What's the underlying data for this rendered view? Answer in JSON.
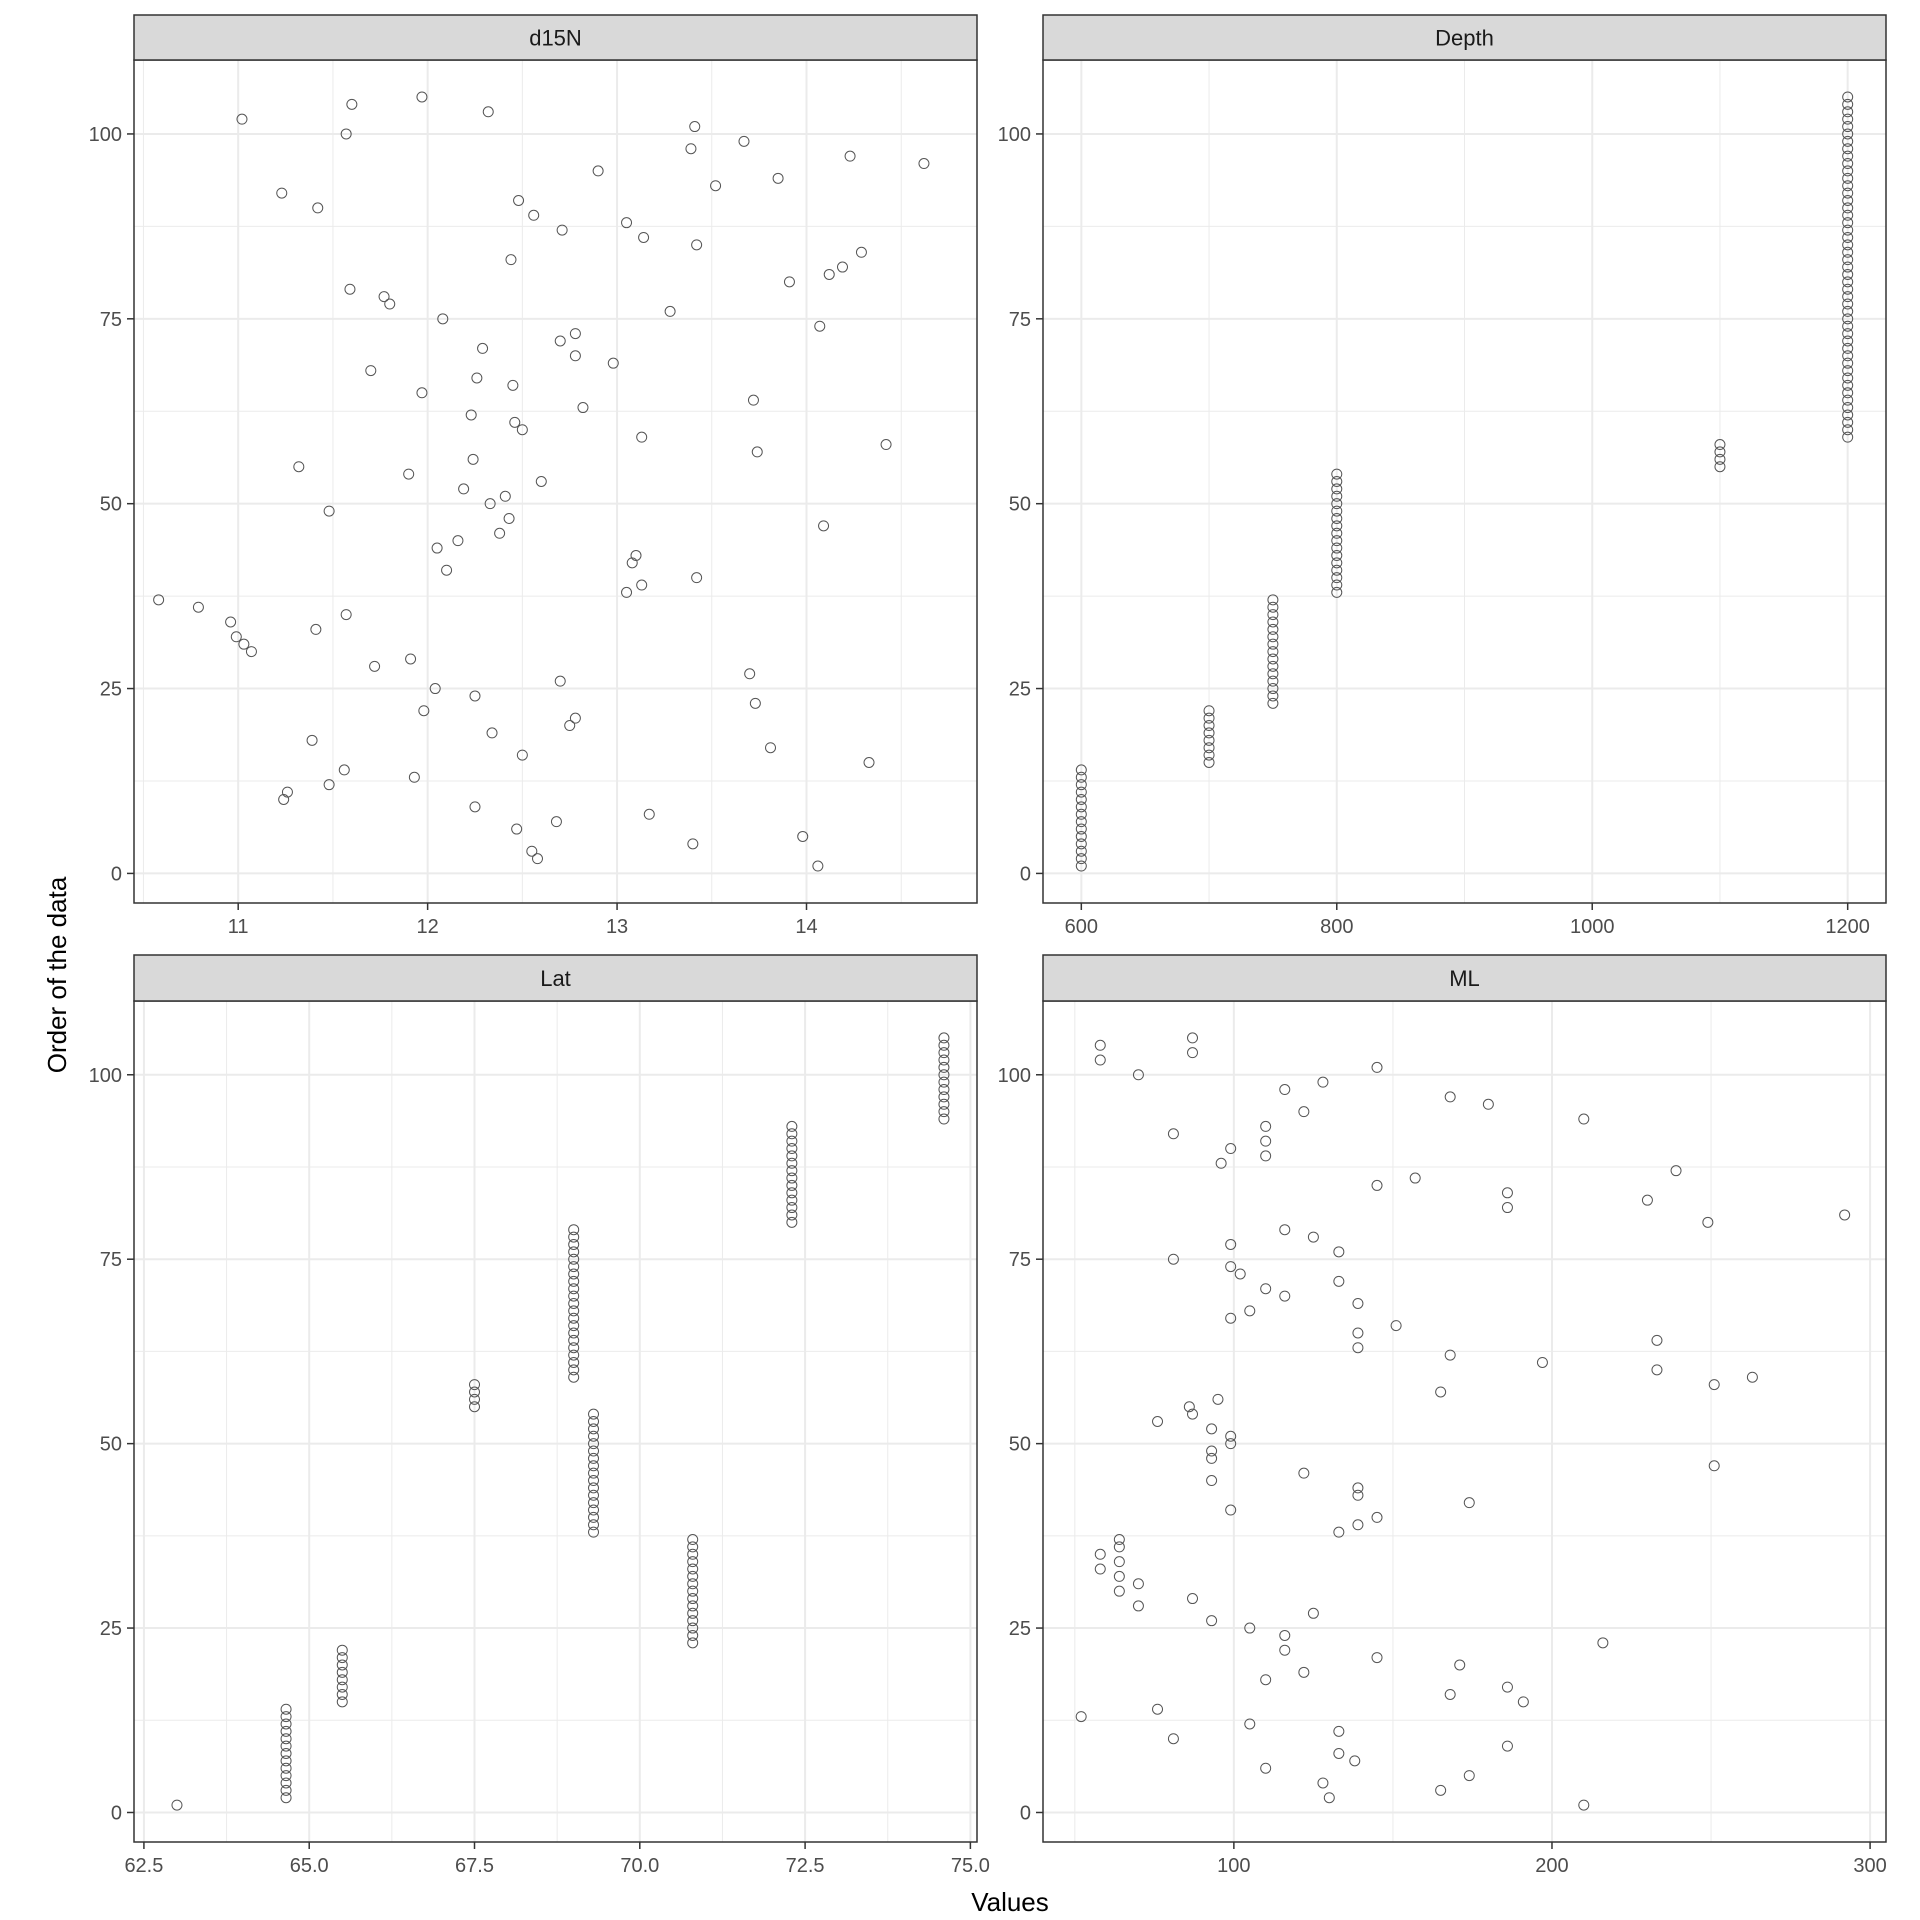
{
  "chart_data": {
    "type": "scatter",
    "xlabel": "Values",
    "ylabel": "Order of the data",
    "colors": {
      "strip_fill": "#d9d9d9",
      "grid": "#ebebeb",
      "point_stroke": "#555555",
      "panel_border": "#333333",
      "text": "#4d4d4d"
    },
    "panels": [
      {
        "name": "d15N",
        "xlim": [
          10.45,
          14.9
        ],
        "xticks": [
          11,
          12,
          13,
          14
        ],
        "xtick_labels": [
          "11",
          "12",
          "13",
          "14"
        ],
        "xminor": [
          10.5,
          11.5,
          12.5,
          13.5,
          14.5
        ],
        "ylim": [
          -4,
          110
        ],
        "yticks": [
          0,
          25,
          50,
          75,
          100
        ],
        "ytick_labels": [
          "0",
          "25",
          "50",
          "75",
          "100"
        ],
        "points": [
          [
            14.06,
            1
          ],
          [
            12.58,
            2
          ],
          [
            12.55,
            3
          ],
          [
            13.4,
            4
          ],
          [
            13.98,
            5
          ],
          [
            12.47,
            6
          ],
          [
            12.68,
            7
          ],
          [
            13.17,
            8
          ],
          [
            12.25,
            9
          ],
          [
            11.24,
            10
          ],
          [
            11.26,
            11
          ],
          [
            11.48,
            12
          ],
          [
            11.93,
            13
          ],
          [
            11.56,
            14
          ],
          [
            14.33,
            15
          ],
          [
            12.5,
            16
          ],
          [
            13.81,
            17
          ],
          [
            11.39,
            18
          ],
          [
            12.34,
            19
          ],
          [
            12.75,
            20
          ],
          [
            12.78,
            21
          ],
          [
            11.98,
            22
          ],
          [
            13.73,
            23
          ],
          [
            12.25,
            24
          ],
          [
            12.04,
            25
          ],
          [
            12.7,
            26
          ],
          [
            13.7,
            27
          ],
          [
            11.72,
            28
          ],
          [
            11.91,
            29
          ],
          [
            11.07,
            30
          ],
          [
            11.03,
            31
          ],
          [
            10.99,
            32
          ],
          [
            11.41,
            33
          ],
          [
            10.96,
            34
          ],
          [
            11.57,
            35
          ],
          [
            10.79,
            36
          ],
          [
            10.58,
            37
          ],
          [
            13.05,
            38
          ],
          [
            13.13,
            39
          ],
          [
            13.42,
            40
          ],
          [
            12.1,
            41
          ],
          [
            13.08,
            42
          ],
          [
            13.1,
            43
          ],
          [
            12.05,
            44
          ],
          [
            12.16,
            45
          ],
          [
            12.38,
            46
          ],
          [
            14.09,
            47
          ],
          [
            12.43,
            48
          ],
          [
            11.48,
            49
          ],
          [
            12.33,
            50
          ],
          [
            12.41,
            51
          ],
          [
            12.19,
            52
          ],
          [
            12.6,
            53
          ],
          [
            11.9,
            54
          ],
          [
            11.32,
            55
          ],
          [
            12.24,
            56
          ],
          [
            13.74,
            57
          ],
          [
            14.42,
            58
          ],
          [
            13.13,
            59
          ],
          [
            12.5,
            60
          ],
          [
            12.46,
            61
          ],
          [
            12.23,
            62
          ],
          [
            12.82,
            63
          ],
          [
            13.72,
            64
          ],
          [
            11.97,
            65
          ],
          [
            12.45,
            66
          ],
          [
            12.26,
            67
          ],
          [
            11.7,
            68
          ],
          [
            12.98,
            69
          ],
          [
            12.78,
            70
          ],
          [
            12.29,
            71
          ],
          [
            12.7,
            72
          ],
          [
            12.78,
            73
          ],
          [
            14.07,
            74
          ],
          [
            12.08,
            75
          ],
          [
            13.28,
            76
          ],
          [
            11.8,
            77
          ],
          [
            11.77,
            78
          ],
          [
            11.59,
            79
          ],
          [
            13.91,
            80
          ],
          [
            14.12,
            81
          ],
          [
            14.19,
            82
          ],
          [
            12.44,
            83
          ],
          [
            14.29,
            84
          ],
          [
            13.42,
            85
          ],
          [
            13.14,
            86
          ],
          [
            12.71,
            87
          ],
          [
            13.05,
            88
          ],
          [
            12.56,
            89
          ],
          [
            11.42,
            90
          ],
          [
            12.48,
            91
          ],
          [
            11.23,
            92
          ],
          [
            13.52,
            93
          ],
          [
            13.85,
            94
          ],
          [
            12.9,
            95
          ],
          [
            14.62,
            96
          ],
          [
            14.23,
            97
          ],
          [
            13.39,
            98
          ],
          [
            13.67,
            99
          ],
          [
            11.57,
            100
          ],
          [
            13.41,
            101
          ],
          [
            11.02,
            102
          ],
          [
            12.32,
            103
          ],
          [
            11.6,
            104
          ],
          [
            11.97,
            105
          ]
        ]
      },
      {
        "name": "Depth",
        "xlim": [
          570,
          1230
        ],
        "xticks": [
          600,
          800,
          1000,
          1200
        ],
        "xtick_labels": [
          "600",
          "800",
          "1000",
          "1200"
        ],
        "xminor": [
          700,
          900,
          1100
        ],
        "ylim": [
          -4,
          110
        ],
        "yticks": [
          0,
          25,
          50,
          75,
          100
        ],
        "ytick_labels": [
          "0",
          "25",
          "50",
          "75",
          "100"
        ],
        "groups": [
          {
            "x": 600,
            "from": 1,
            "to": 14
          },
          {
            "x": 700,
            "from": 15,
            "to": 22
          },
          {
            "x": 750,
            "from": 23,
            "to": 37
          },
          {
            "x": 800,
            "from": 38,
            "to": 54
          },
          {
            "x": 1100,
            "from": 55,
            "to": 58
          },
          {
            "x": 1200,
            "from": 59,
            "to": 105
          }
        ]
      },
      {
        "name": "Lat",
        "xlim": [
          62.35,
          75.1
        ],
        "xticks": [
          62.5,
          65.0,
          67.5,
          70.0,
          72.5,
          75.0
        ],
        "xtick_labels": [
          "62.5",
          "65.0",
          "67.5",
          "70.0",
          "72.5",
          "75.0"
        ],
        "xminor": [
          63.75,
          66.25,
          68.75,
          71.25,
          73.75
        ],
        "ylim": [
          -4,
          110
        ],
        "yticks": [
          0,
          25,
          50,
          75,
          100
        ],
        "ytick_labels": [
          "0",
          "25",
          "50",
          "75",
          "100"
        ],
        "groups": [
          {
            "x": 63.0,
            "from": 1,
            "to": 1
          },
          {
            "x": 64.65,
            "from": 2,
            "to": 14
          },
          {
            "x": 65.5,
            "from": 15,
            "to": 22
          },
          {
            "x": 70.8,
            "from": 23,
            "to": 37
          },
          {
            "x": 69.3,
            "from": 38,
            "to": 54
          },
          {
            "x": 67.5,
            "from": 55,
            "to": 58
          },
          {
            "x": 69.0,
            "from": 59,
            "to": 79
          },
          {
            "x": 72.3,
            "from": 80,
            "to": 93
          },
          {
            "x": 74.6,
            "from": 94,
            "to": 105
          }
        ]
      },
      {
        "name": "ML",
        "xlim": [
          40,
          305
        ],
        "xticks": [
          100,
          200,
          300
        ],
        "xtick_labels": [
          "100",
          "200",
          "300"
        ],
        "xminor": [
          50,
          150,
          250
        ],
        "ylim": [
          -4,
          110
        ],
        "yticks": [
          0,
          25,
          50,
          75,
          100
        ],
        "ytick_labels": [
          "0",
          "25",
          "50",
          "75",
          "100"
        ],
        "points": [
          [
            210,
            1
          ],
          [
            130,
            2
          ],
          [
            165,
            3
          ],
          [
            128,
            4
          ],
          [
            174,
            5
          ],
          [
            110,
            6
          ],
          [
            138,
            7
          ],
          [
            133,
            8
          ],
          [
            186,
            9
          ],
          [
            81,
            10
          ],
          [
            133,
            11
          ],
          [
            105,
            12
          ],
          [
            52,
            13
          ],
          [
            76,
            14
          ],
          [
            191,
            15
          ],
          [
            168,
            16
          ],
          [
            186,
            17
          ],
          [
            110,
            18
          ],
          [
            122,
            19
          ],
          [
            171,
            20
          ],
          [
            145,
            21
          ],
          [
            116,
            22
          ],
          [
            216,
            23
          ],
          [
            116,
            24
          ],
          [
            105,
            25
          ],
          [
            93,
            26
          ],
          [
            125,
            27
          ],
          [
            70,
            28
          ],
          [
            87,
            29
          ],
          [
            64,
            30
          ],
          [
            70,
            31
          ],
          [
            64,
            32
          ],
          [
            58,
            33
          ],
          [
            64,
            34
          ],
          [
            58,
            35
          ],
          [
            64,
            36
          ],
          [
            64,
            37
          ],
          [
            133,
            38
          ],
          [
            139,
            39
          ],
          [
            145,
            40
          ],
          [
            99,
            41
          ],
          [
            174,
            42
          ],
          [
            139,
            43
          ],
          [
            139,
            44
          ],
          [
            93,
            45
          ],
          [
            122,
            46
          ],
          [
            251,
            47
          ],
          [
            93,
            48
          ],
          [
            93,
            49
          ],
          [
            99,
            50
          ],
          [
            99,
            51
          ],
          [
            93,
            52
          ],
          [
            76,
            53
          ],
          [
            87,
            54
          ],
          [
            86,
            55
          ],
          [
            95,
            56
          ],
          [
            165,
            57
          ],
          [
            251,
            58
          ],
          [
            263,
            59
          ],
          [
            233,
            60
          ],
          [
            197,
            61
          ],
          [
            168,
            62
          ],
          [
            139,
            63
          ],
          [
            233,
            64
          ],
          [
            139,
            65
          ],
          [
            151,
            66
          ],
          [
            99,
            67
          ],
          [
            105,
            68
          ],
          [
            139,
            69
          ],
          [
            116,
            70
          ],
          [
            110,
            71
          ],
          [
            133,
            72
          ],
          [
            102,
            73
          ],
          [
            99,
            74
          ],
          [
            81,
            75
          ],
          [
            133,
            76
          ],
          [
            99,
            77
          ],
          [
            125,
            78
          ],
          [
            116,
            79
          ],
          [
            249,
            80
          ],
          [
            292,
            81
          ],
          [
            186,
            82
          ],
          [
            230,
            83
          ],
          [
            186,
            84
          ],
          [
            145,
            85
          ],
          [
            157,
            86
          ],
          [
            239,
            87
          ],
          [
            96,
            88
          ],
          [
            110,
            89
          ],
          [
            99,
            90
          ],
          [
            110,
            91
          ],
          [
            81,
            92
          ],
          [
            110,
            93
          ],
          [
            210,
            94
          ],
          [
            122,
            95
          ],
          [
            180,
            96
          ],
          [
            168,
            97
          ],
          [
            116,
            98
          ],
          [
            128,
            99
          ],
          [
            70,
            100
          ],
          [
            145,
            101
          ],
          [
            58,
            102
          ],
          [
            87,
            103
          ],
          [
            58,
            104
          ],
          [
            87,
            105
          ]
        ]
      }
    ]
  }
}
